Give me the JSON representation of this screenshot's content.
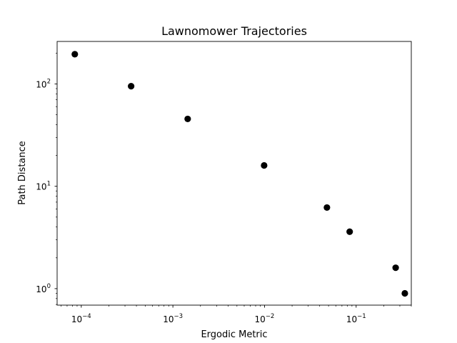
{
  "chart_data": {
    "type": "scatter",
    "title": "Lawnomower Trajectories",
    "xlabel": "Ergodic Metric",
    "ylabel": "Path Distance",
    "xscale": "log",
    "yscale": "log",
    "xlim": [
      5.45e-05,
      0.4
    ],
    "ylim": [
      0.69,
      260
    ],
    "grid": false,
    "x_ticks": [
      {
        "value": 0.0001,
        "base": "10",
        "exp": "−4"
      },
      {
        "value": 0.001,
        "base": "10",
        "exp": "−3"
      },
      {
        "value": 0.01,
        "base": "10",
        "exp": "−2"
      },
      {
        "value": 0.1,
        "base": "10",
        "exp": "−1"
      }
    ],
    "y_ticks": [
      {
        "value": 1,
        "base": "10",
        "exp": "0"
      },
      {
        "value": 10,
        "base": "10",
        "exp": "1"
      },
      {
        "value": 100,
        "base": "10",
        "exp": "2"
      }
    ],
    "points": [
      {
        "x": 8.5e-05,
        "y": 195
      },
      {
        "x": 0.00035,
        "y": 95
      },
      {
        "x": 0.00145,
        "y": 45.5
      },
      {
        "x": 0.0099,
        "y": 16
      },
      {
        "x": 0.048,
        "y": 6.2
      },
      {
        "x": 0.085,
        "y": 3.6
      },
      {
        "x": 0.27,
        "y": 1.6
      },
      {
        "x": 0.34,
        "y": 0.9
      }
    ],
    "marker_color": "#000000"
  }
}
